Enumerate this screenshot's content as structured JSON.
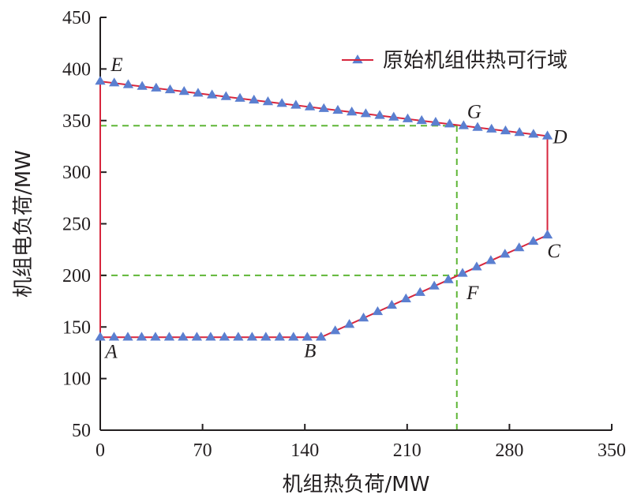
{
  "chart_data": {
    "type": "line",
    "xlabel": "机组热负荷/MW",
    "ylabel": "机组电负荷/MW",
    "xlim": [
      0,
      350
    ],
    "ylim": [
      50,
      450
    ],
    "xticks": [
      "0",
      "70",
      "140",
      "210",
      "280",
      "350"
    ],
    "yticks": [
      "50",
      "100",
      "150",
      "200",
      "250",
      "300",
      "350",
      "400",
      "450"
    ],
    "legend_position": "top-right",
    "grid": false,
    "series": [
      {
        "name": "原始机组供热可行域",
        "color": "#d7263d",
        "marker_color": "#5b7fd0",
        "polygon": [
          [
            0,
            140
          ],
          [
            151.1,
            140
          ],
          [
            306,
            239
          ],
          [
            306,
            335
          ],
          [
            0,
            388
          ]
        ]
      }
    ],
    "points": [
      {
        "label": "A",
        "x": 0,
        "y": 140
      },
      {
        "label": "B",
        "x": 151.1,
        "y": 140
      },
      {
        "label": "C",
        "x": 306,
        "y": 239
      },
      {
        "label": "D",
        "x": 306,
        "y": 335
      },
      {
        "label": "E",
        "x": 0,
        "y": 388
      },
      {
        "label": "F",
        "x": 244,
        "y": 200
      },
      {
        "label": "G",
        "x": 244,
        "y": 345
      }
    ],
    "reference_lines": [
      {
        "kind": "horizontal",
        "y": 345,
        "x_from": 0,
        "x_to": 244,
        "color": "#5fb636",
        "style": "dashed"
      },
      {
        "kind": "horizontal",
        "y": 200,
        "x_from": 0,
        "x_to": 244,
        "color": "#5fb636",
        "style": "dashed"
      },
      {
        "kind": "vertical",
        "x": 244,
        "y_from": 50,
        "y_to": 345,
        "color": "#5fb636",
        "style": "dashed"
      }
    ]
  }
}
